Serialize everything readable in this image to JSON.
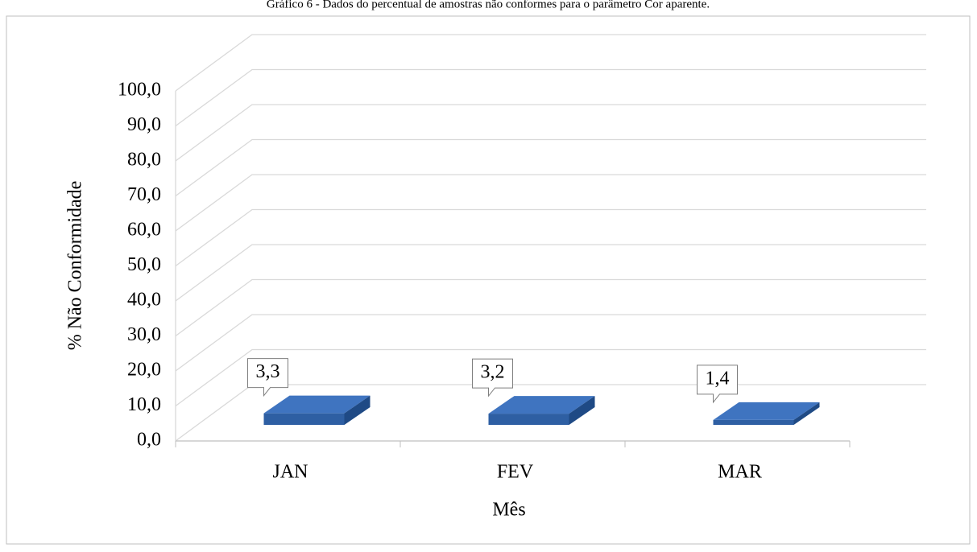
{
  "chart_data": {
    "type": "bar",
    "title": "Gráfico 6 - Dados do percentual de amostras não conformes para o parâmetro Cor aparente.",
    "x_label": "Mês",
    "y_label": "% Não Conformidade",
    "categories": [
      "JAN",
      "FEV",
      "MAR"
    ],
    "values": [
      3.3,
      3.2,
      1.4
    ],
    "value_labels": [
      "3,3",
      "3,2",
      "1,4"
    ],
    "color": "#2e5fa3",
    "ylim": [
      0,
      100
    ],
    "yticks": [
      {
        "value": 0,
        "label": "0,0"
      },
      {
        "value": 10,
        "label": "10,0"
      },
      {
        "value": 20,
        "label": "20,0"
      },
      {
        "value": 30,
        "label": "30,0"
      },
      {
        "value": 40,
        "label": "40,0"
      },
      {
        "value": 50,
        "label": "50,0"
      },
      {
        "value": 60,
        "label": "60,0"
      },
      {
        "value": 70,
        "label": "70,0"
      },
      {
        "value": 80,
        "label": "80,0"
      },
      {
        "value": 90,
        "label": "90,0"
      },
      {
        "value": 100,
        "label": "100,0"
      }
    ],
    "grid": true
  }
}
